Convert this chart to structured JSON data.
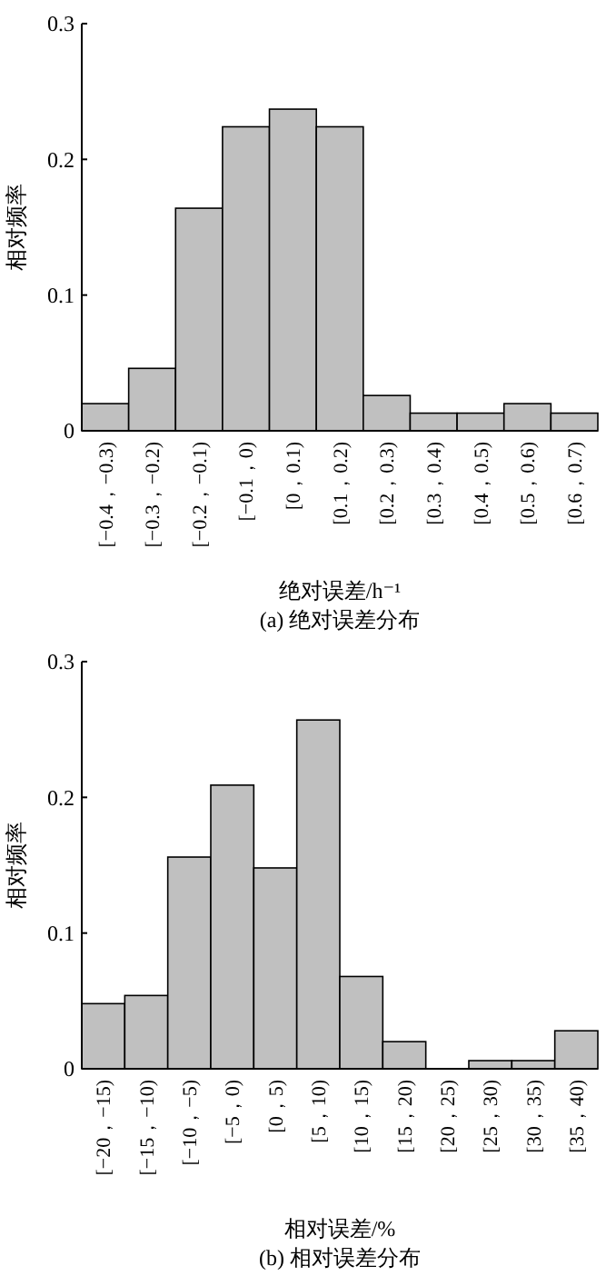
{
  "chart_data": [
    {
      "type": "bar",
      "xlabel": "绝对误差/h⁻¹",
      "subtitle": "(a) 绝对误差分布",
      "ylabel": "相对频率",
      "categories": [
        "[−0.4，−0.3)",
        "[−0.3，−0.2)",
        "[−0.2，−0.1)",
        "[−0.1，0)",
        "[0，0.1)",
        "[0.1，0.2)",
        "[0.2，0.3)",
        "[0.3，0.4)",
        "[0.4，0.5)",
        "[0.5，0.6)",
        "[0.6，0.7)"
      ],
      "values": [
        0.02,
        0.046,
        0.164,
        0.224,
        0.237,
        0.224,
        0.026,
        0.013,
        0.013,
        0.02,
        0.013
      ],
      "color": "#c0c0c0",
      "ylim": [
        0,
        0.3
      ],
      "yticks": [
        0,
        0.1,
        0.2,
        0.3
      ]
    },
    {
      "type": "bar",
      "xlabel": "相对误差/%",
      "subtitle": "(b) 相对误差分布",
      "ylabel": "相对频率",
      "categories": [
        "[−20，−15)",
        "[−15，−10)",
        "[−10，−5)",
        "[−5，0)",
        "[0，5)",
        "[5，10)",
        "[10，15)",
        "[15，20)",
        "[20，25)",
        "[25，30)",
        "[30，35)",
        "[35，40)"
      ],
      "values": [
        0.048,
        0.054,
        0.156,
        0.209,
        0.148,
        0.257,
        0.068,
        0.02,
        0,
        0.006,
        0.006,
        0.028
      ],
      "color": "#c0c0c0",
      "ylim": [
        0,
        0.3
      ],
      "yticks": [
        0,
        0.1,
        0.2,
        0.3
      ]
    }
  ]
}
